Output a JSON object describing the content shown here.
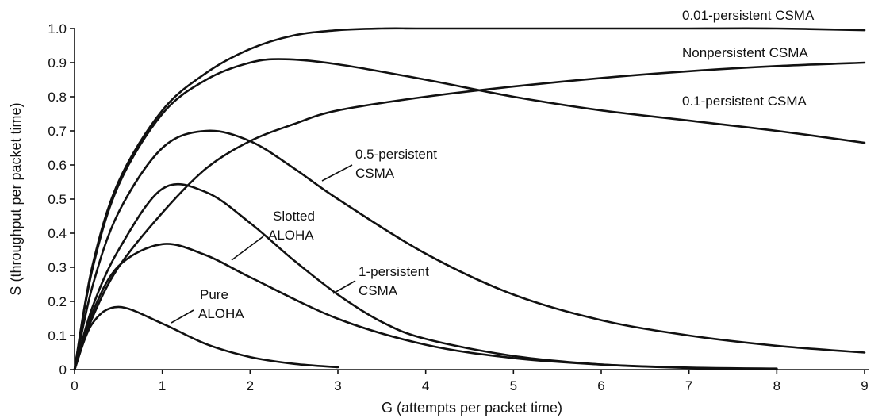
{
  "chart_data": {
    "type": "line",
    "xlabel": "G (attempts per packet time)",
    "ylabel": "S (throughput per packet time)",
    "xlim": [
      0,
      9
    ],
    "ylim": [
      0,
      1.0
    ],
    "x_ticks": [
      "0",
      "1",
      "2",
      "3",
      "4",
      "5",
      "6",
      "7",
      "8",
      "9"
    ],
    "y_ticks": [
      "0",
      "0.1",
      "0.2",
      "0.3",
      "0.4",
      "0.5",
      "0.6",
      "0.7",
      "0.8",
      "0.9",
      "1.0"
    ],
    "grid": false,
    "legend": "none",
    "series": [
      {
        "name": "0.01-persistent CSMA",
        "x": [
          0,
          0.2,
          0.5,
          1,
          1.5,
          2,
          2.5,
          3,
          3.5,
          4,
          5,
          6,
          7,
          8,
          9
        ],
        "y": [
          0,
          0.3,
          0.55,
          0.76,
          0.87,
          0.94,
          0.98,
          0.995,
          1.0,
          1.0,
          1.0,
          1.0,
          1.0,
          1.0,
          0.995
        ]
      },
      {
        "name": "Nonpersistent CSMA",
        "x": [
          0,
          0.2,
          0.5,
          1,
          1.5,
          2,
          2.5,
          3,
          4,
          5,
          6,
          7,
          8,
          9
        ],
        "y": [
          0,
          0.15,
          0.3,
          0.46,
          0.59,
          0.67,
          0.72,
          0.76,
          0.8,
          0.83,
          0.855,
          0.875,
          0.89,
          0.9
        ]
      },
      {
        "name": "0.1-persistent CSMA",
        "x": [
          0,
          0.2,
          0.5,
          1,
          1.5,
          2,
          2.4,
          3,
          4,
          5,
          6,
          7,
          8,
          9
        ],
        "y": [
          0,
          0.29,
          0.54,
          0.75,
          0.85,
          0.9,
          0.91,
          0.895,
          0.85,
          0.8,
          0.76,
          0.73,
          0.7,
          0.665
        ]
      },
      {
        "name": "0.5-persistent CSMA",
        "x": [
          0,
          0.2,
          0.5,
          1,
          1.5,
          2,
          2.5,
          3,
          4,
          5,
          6,
          7,
          8,
          9
        ],
        "y": [
          0,
          0.24,
          0.46,
          0.65,
          0.7,
          0.67,
          0.59,
          0.5,
          0.34,
          0.22,
          0.145,
          0.1,
          0.07,
          0.05
        ]
      },
      {
        "name": "1-persistent CSMA",
        "x": [
          0,
          0.2,
          0.5,
          1,
          1.5,
          2,
          2.5,
          3,
          3.5,
          4,
          5,
          6,
          7,
          8
        ],
        "y": [
          0,
          0.18,
          0.35,
          0.53,
          0.52,
          0.43,
          0.32,
          0.22,
          0.14,
          0.09,
          0.04,
          0.015,
          0.005,
          0.002
        ]
      },
      {
        "name": "Slotted ALOHA",
        "x": [
          0,
          0.2,
          0.5,
          1,
          1.5,
          2,
          3,
          4,
          5,
          6,
          7,
          8
        ],
        "y": [
          0,
          0.164,
          0.303,
          0.368,
          0.335,
          0.271,
          0.149,
          0.073,
          0.034,
          0.015,
          0.006,
          0.003
        ]
      },
      {
        "name": "Pure ALOHA",
        "x": [
          0,
          0.2,
          0.5,
          1,
          1.5,
          2,
          2.5,
          3
        ],
        "y": [
          0,
          0.134,
          0.184,
          0.135,
          0.075,
          0.037,
          0.017,
          0.007
        ]
      }
    ],
    "labels": {
      "p001": "0.01-persistent CSMA",
      "nonpersistent": "Nonpersistent CSMA",
      "p01": "0.1-persistent CSMA",
      "p05_line1": "0.5-persistent",
      "p05_line2": "CSMA",
      "slotted_line1": "Slotted",
      "slotted_line2": "ALOHA",
      "p1_line1": "1-persistent",
      "p1_line2": "CSMA",
      "pure_line1": "Pure",
      "pure_line2": "ALOHA"
    }
  }
}
